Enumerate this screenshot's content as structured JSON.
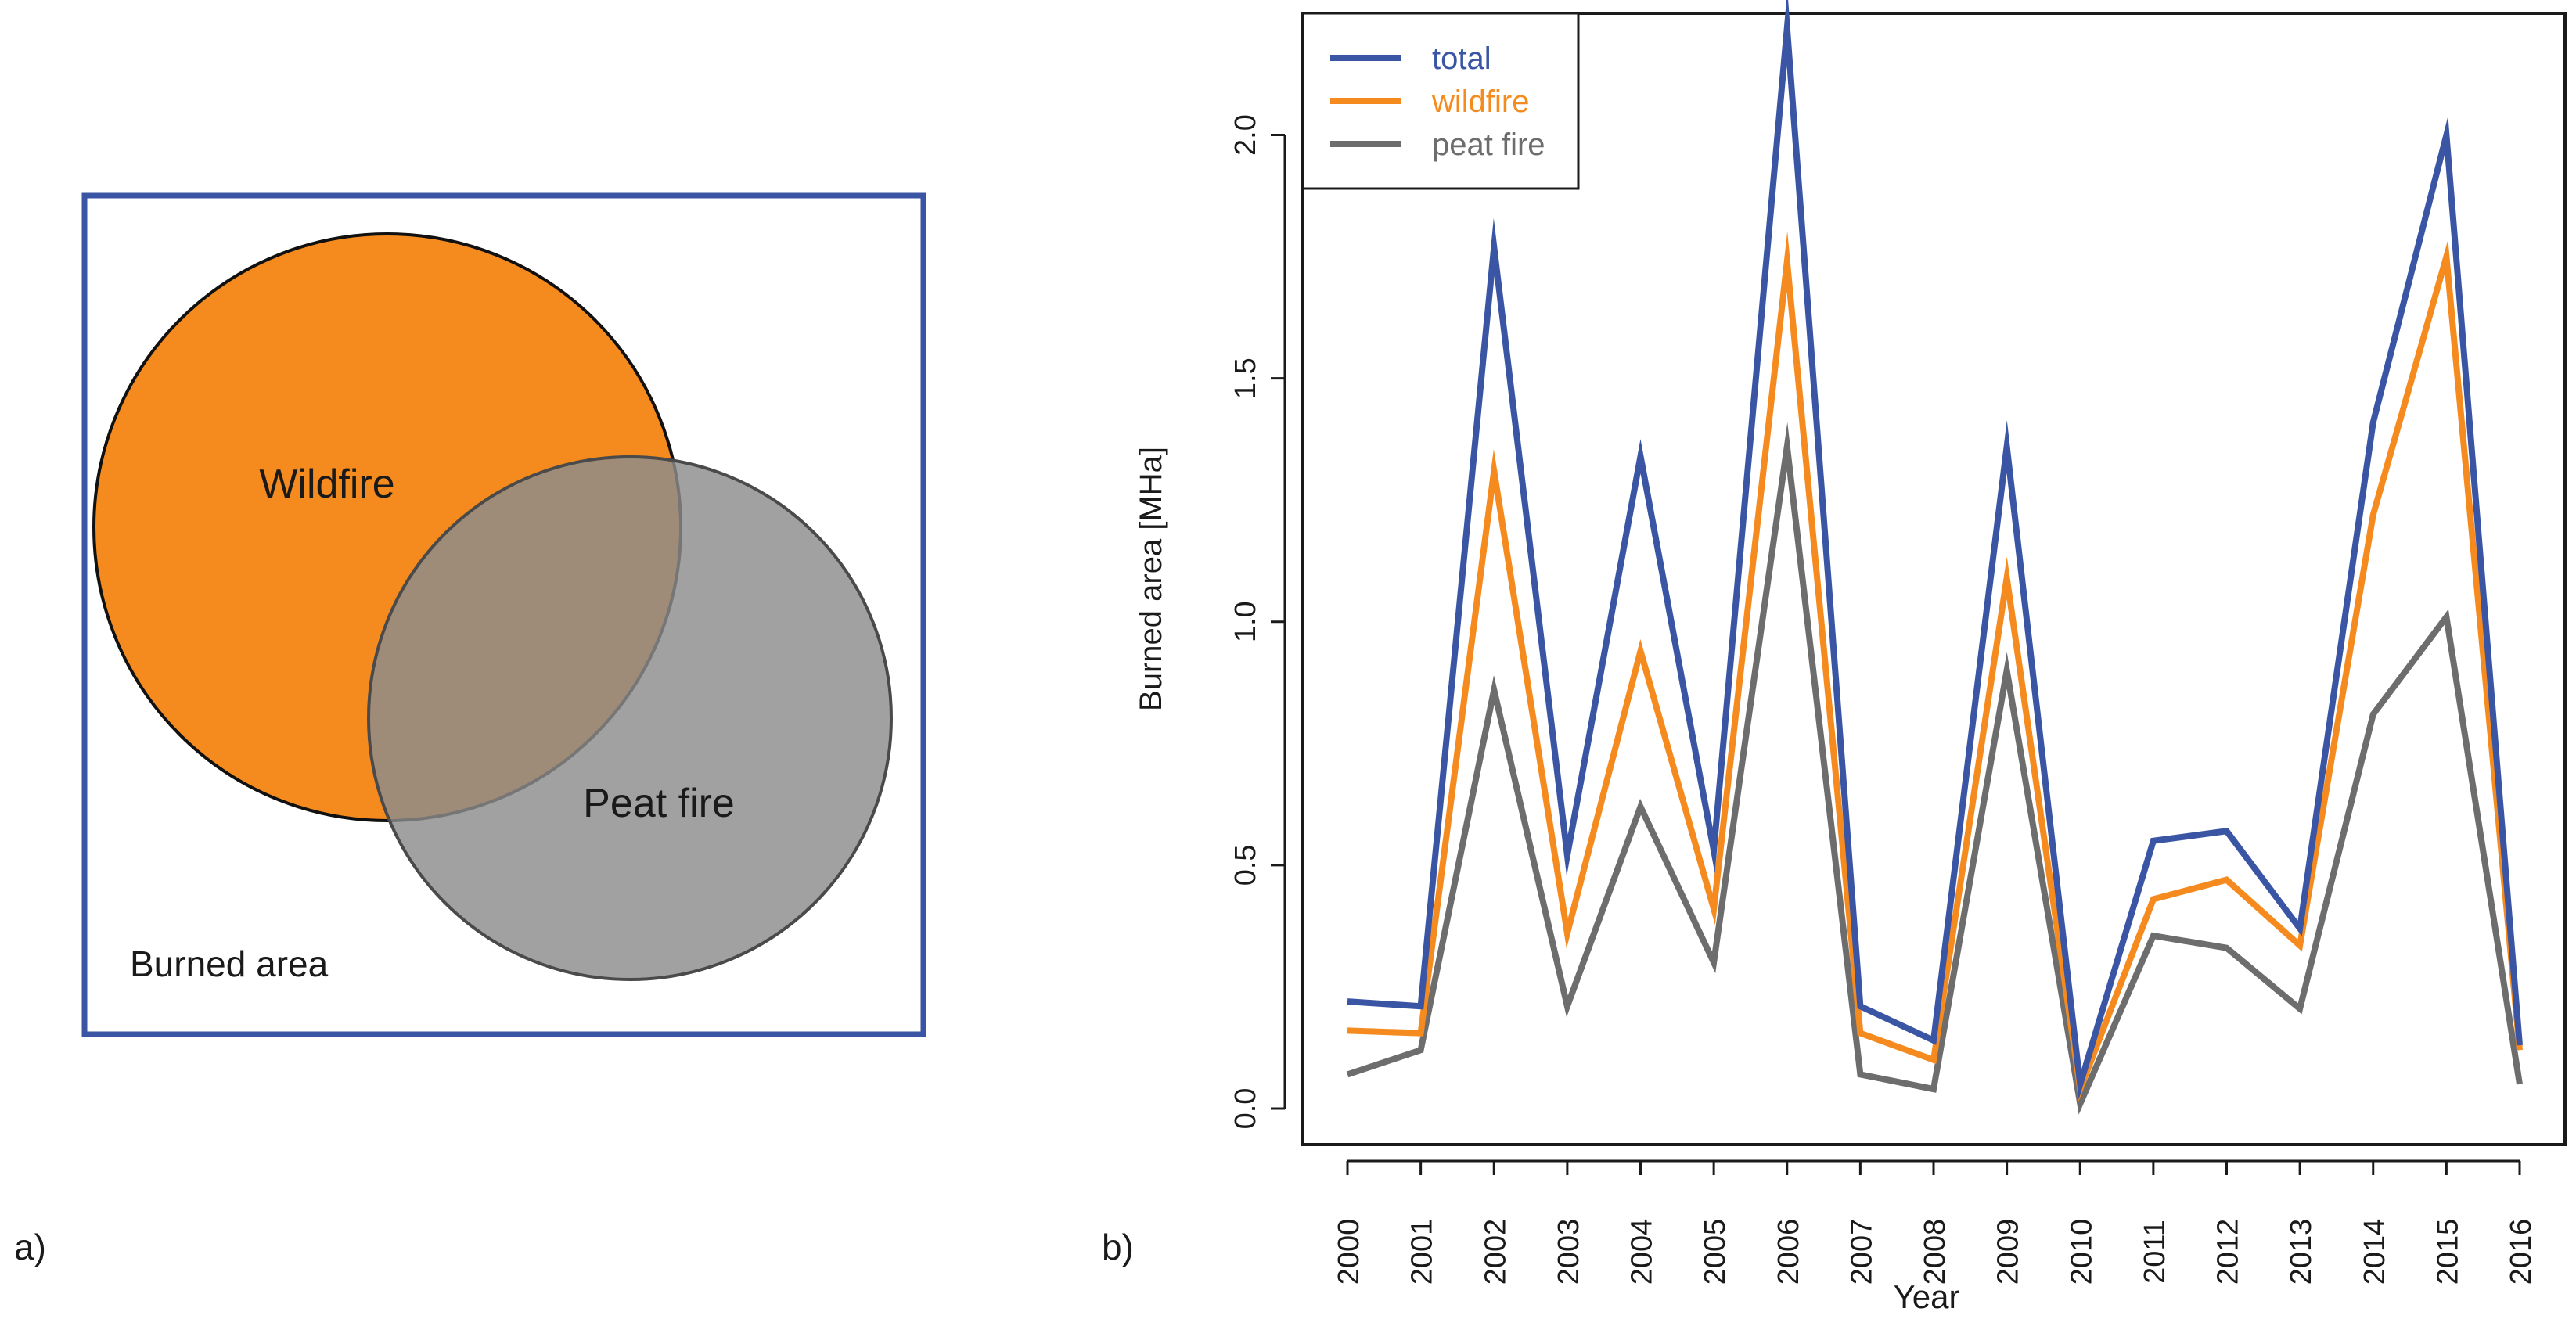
{
  "panel_a": {
    "label": "a)",
    "outer_label": "Burned area",
    "circle_labels": [
      "Wildfire",
      "Peat fire"
    ],
    "colors": {
      "box": "#3a55a4",
      "wildfire": "#f58b1f",
      "peat": "#8c8c8c"
    }
  },
  "panel_b": {
    "label": "b)"
  },
  "chart_data": {
    "type": "line",
    "title": "",
    "xlabel": "Year",
    "ylabel": "Burned area [MHa]",
    "ylim": [
      0,
      2.25
    ],
    "yticks": [
      0.0,
      0.5,
      1.0,
      1.5,
      2.0
    ],
    "ytick_labels": [
      "0.0",
      "0.5",
      "1.0",
      "1.5",
      "2.0"
    ],
    "categories": [
      "2000",
      "2001",
      "2002",
      "2003",
      "2004",
      "2005",
      "2006",
      "2007",
      "2008",
      "2009",
      "2010",
      "2011",
      "2012",
      "2013",
      "2014",
      "2015",
      "2016"
    ],
    "series": [
      {
        "name": "total",
        "color": "#3a55a4",
        "values": [
          0.22,
          0.21,
          1.77,
          0.52,
          1.34,
          0.53,
          2.22,
          0.21,
          0.14,
          1.36,
          0.05,
          0.55,
          0.57,
          0.37,
          1.41,
          2.0,
          0.13
        ]
      },
      {
        "name": "wildfire",
        "color": "#f58b1f",
        "values": [
          0.16,
          0.155,
          1.31,
          0.36,
          0.94,
          0.41,
          1.74,
          0.155,
          0.1,
          1.09,
          0.04,
          0.43,
          0.47,
          0.335,
          1.22,
          1.75,
          0.12
        ]
      },
      {
        "name": "peat fire",
        "color": "#6d6d6d",
        "values": [
          0.07,
          0.12,
          0.86,
          0.21,
          0.62,
          0.3,
          1.36,
          0.07,
          0.04,
          0.9,
          0.01,
          0.355,
          0.33,
          0.205,
          0.81,
          1.01,
          0.05
        ]
      }
    ],
    "legend": "top-left"
  }
}
